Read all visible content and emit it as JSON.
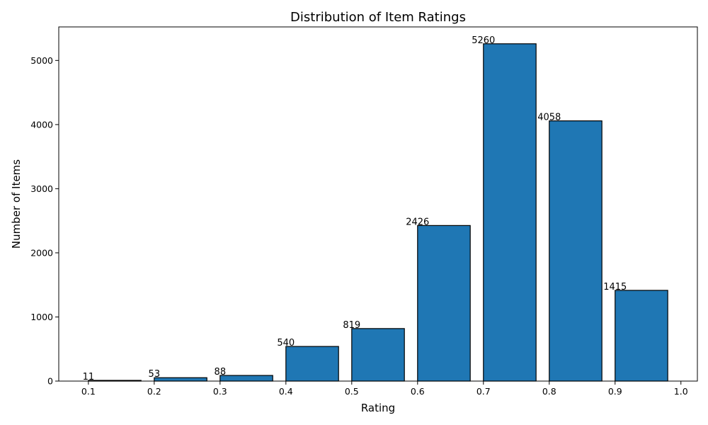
{
  "chart_data": {
    "type": "bar",
    "title": "Distribution of Item Ratings",
    "xlabel": "Rating",
    "ylabel": "Number of Items",
    "bar_color": "#1f77b4",
    "edge_color": "#000000",
    "bin_width": 0.08,
    "x": [
      0.1,
      0.2,
      0.3,
      0.4,
      0.5,
      0.6,
      0.7,
      0.8,
      0.9
    ],
    "values": [
      11,
      53,
      88,
      540,
      819,
      2426,
      5260,
      4058,
      1415
    ],
    "data_labels": [
      "11",
      "53",
      "88",
      "540",
      "819",
      "2426",
      "5260",
      "4058",
      "1415"
    ],
    "xlim": [
      0.055,
      1.025
    ],
    "ylim": [
      0,
      5523
    ],
    "xticks": [
      0.1,
      0.2,
      0.3,
      0.4,
      0.5,
      0.6,
      0.7,
      0.8,
      0.9,
      1.0
    ],
    "xtick_labels": [
      "0.1",
      "0.2",
      "0.3",
      "0.4",
      "0.5",
      "0.6",
      "0.7",
      "0.8",
      "0.9",
      "1.0"
    ],
    "yticks": [
      0,
      1000,
      2000,
      3000,
      4000,
      5000
    ],
    "ytick_labels": [
      "0",
      "1000",
      "2000",
      "3000",
      "4000",
      "5000"
    ],
    "grid": false
  }
}
